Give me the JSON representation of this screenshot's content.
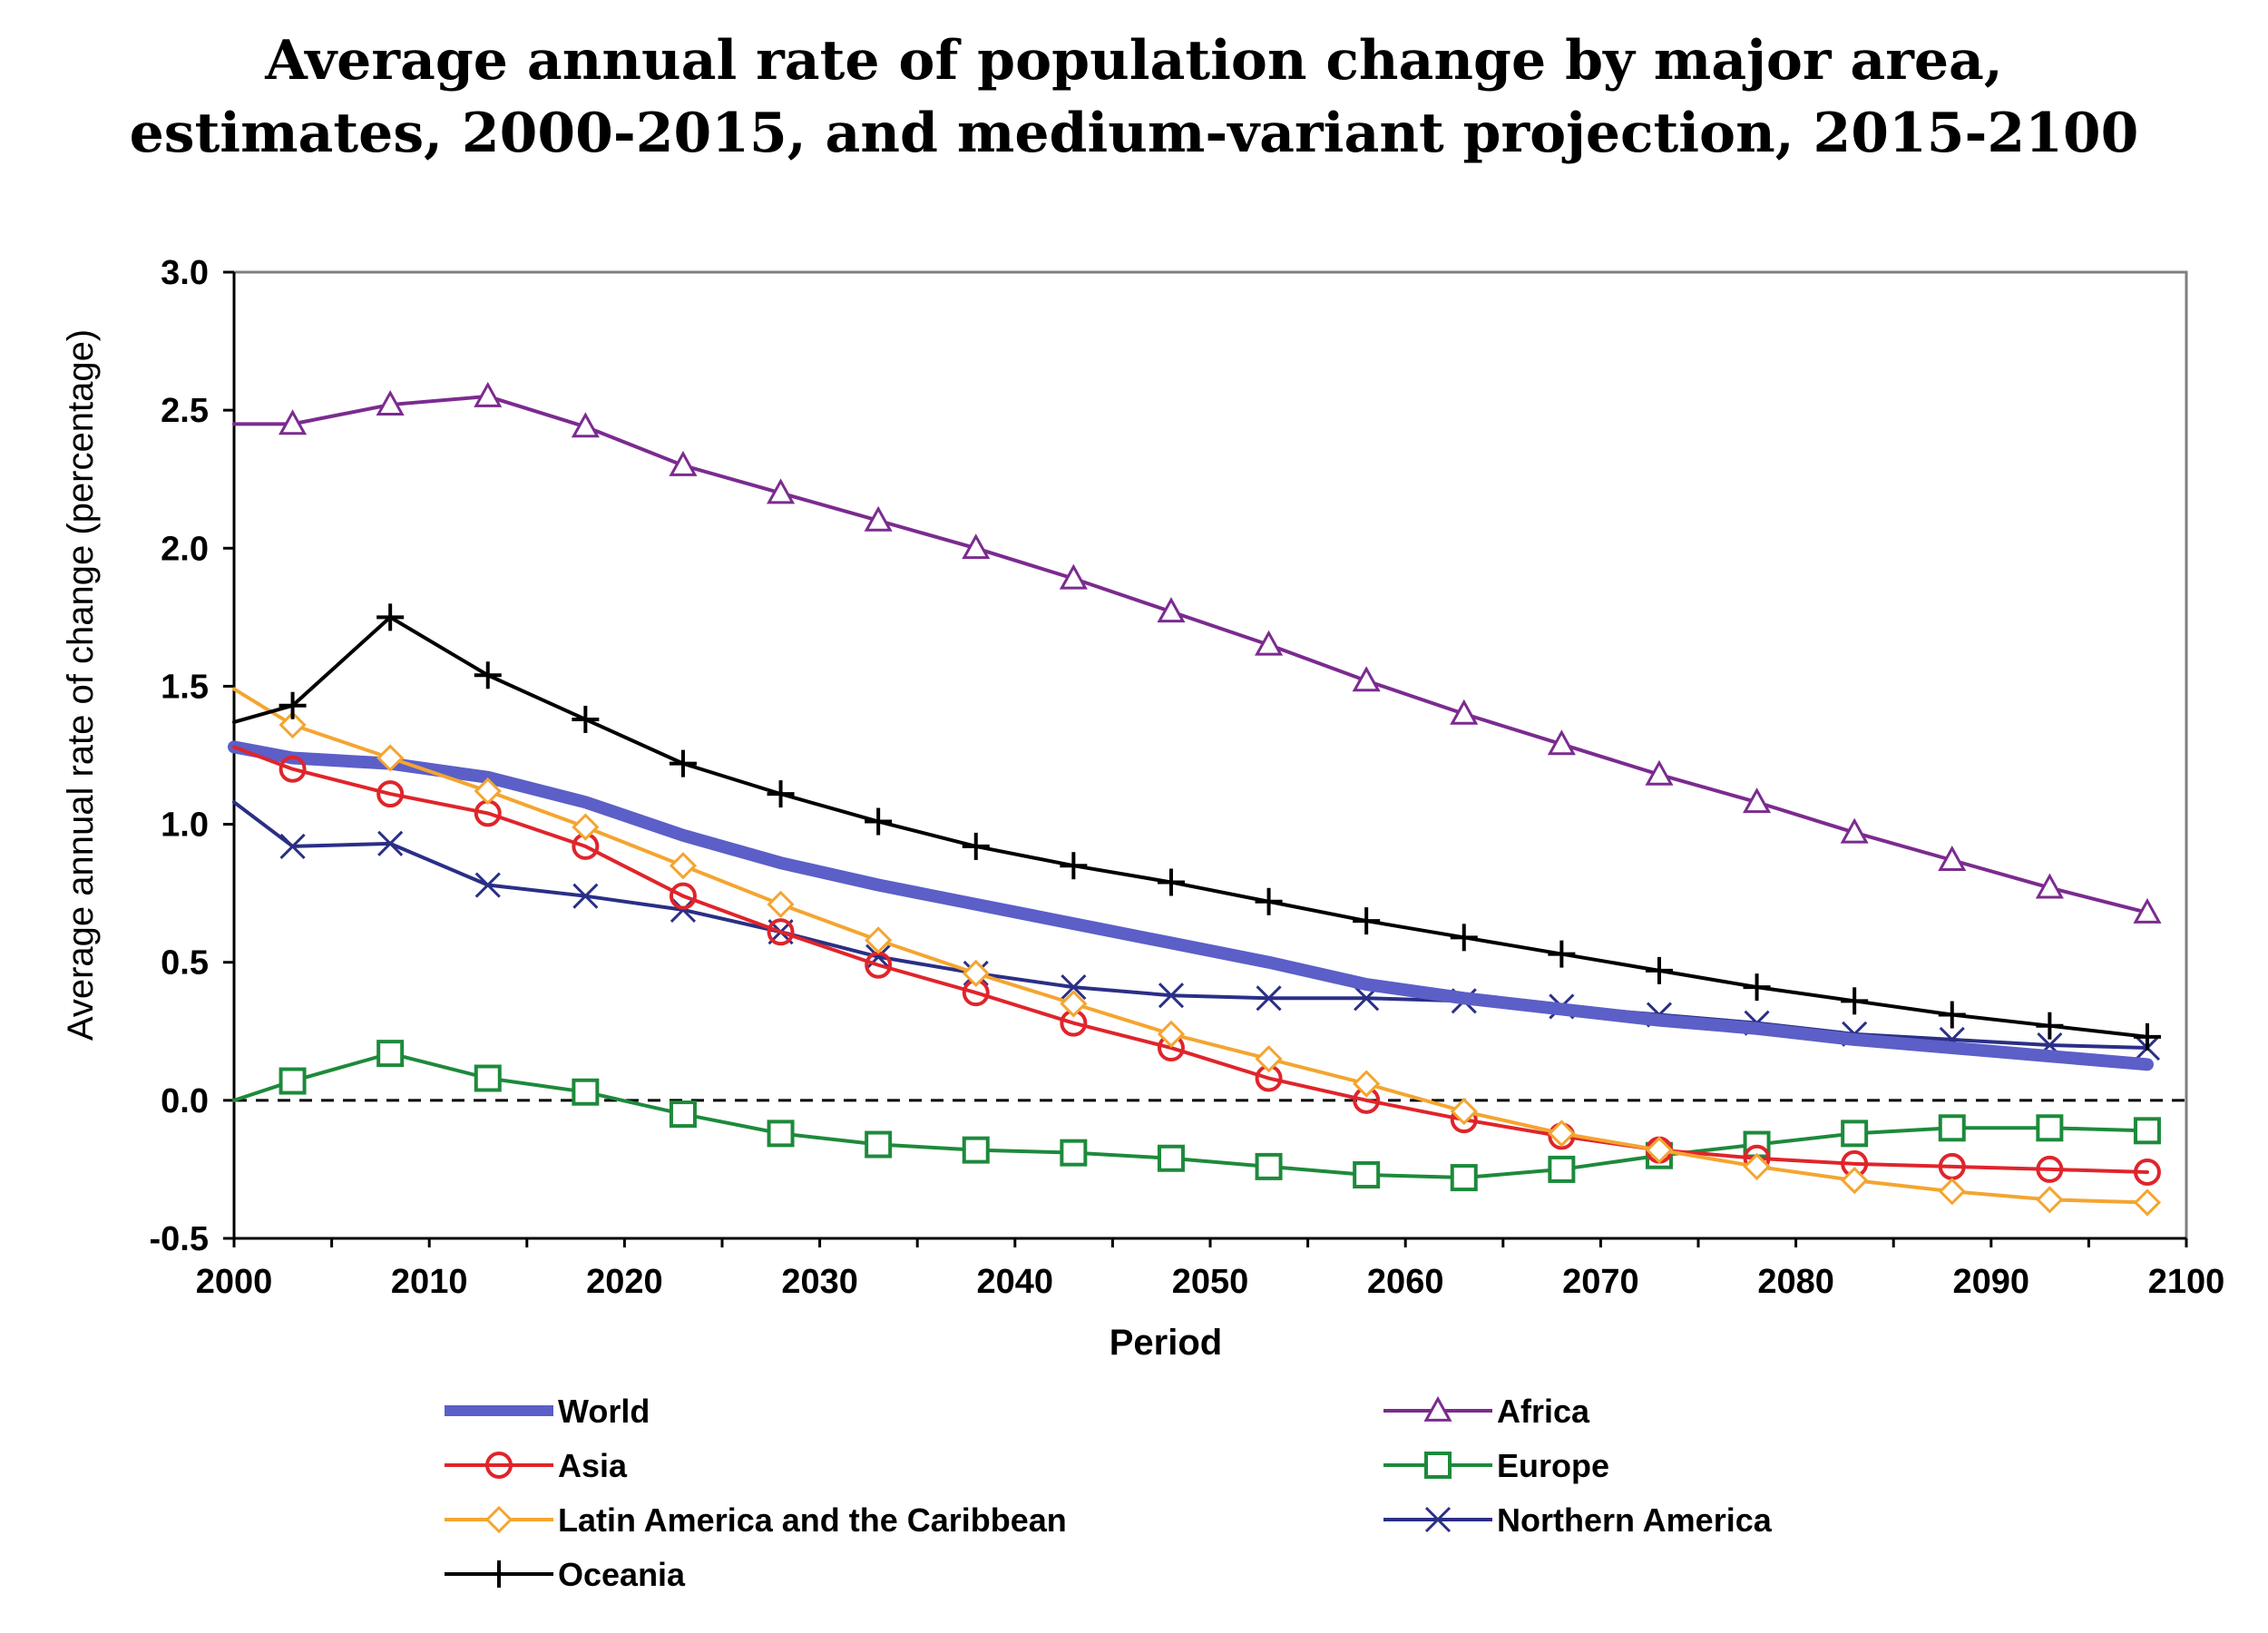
{
  "chart_data": {
    "type": "line",
    "title": "Average annual rate of population change by major area,",
    "subtitle": "estimates, 2000-2015, and medium-variant projection, 2015-2100",
    "xlabel": "Period",
    "ylabel": "Average annual rate of change (percentage)",
    "xlim": [
      2000,
      2100
    ],
    "ylim": [
      -0.5,
      3.0
    ],
    "xticks": [
      2000,
      2010,
      2020,
      2030,
      2040,
      2050,
      2060,
      2070,
      2080,
      2090,
      2100
    ],
    "yticks": [
      -0.5,
      0.0,
      0.5,
      1.0,
      1.5,
      2.0,
      2.5,
      3.0
    ],
    "ytick_labels": [
      "-0.5",
      "0.0",
      "0.5",
      "1.0",
      "1.5",
      "2.0",
      "2.5",
      "3.0"
    ],
    "grid": false,
    "reference_line": {
      "y": 0.0,
      "style": "dashed"
    },
    "legend_position": "bottom",
    "series": [
      {
        "name": "World",
        "color": "#5b5fc7",
        "marker": "none",
        "line_style": "thick",
        "x": [
          2000,
          2003,
          2008,
          2013,
          2018,
          2023,
          2028,
          2033,
          2038,
          2043,
          2048,
          2053,
          2058,
          2063,
          2068,
          2073,
          2078,
          2083,
          2088,
          2093,
          2098
        ],
        "values": [
          1.28,
          1.24,
          1.22,
          1.17,
          1.08,
          0.96,
          0.86,
          0.78,
          0.71,
          0.64,
          0.57,
          0.5,
          0.42,
          0.37,
          0.33,
          0.29,
          0.26,
          0.22,
          0.19,
          0.16,
          0.13
        ]
      },
      {
        "name": "Africa",
        "color": "#7b2b8f",
        "marker": "triangle",
        "x": [
          2000,
          2003,
          2008,
          2013,
          2018,
          2023,
          2028,
          2033,
          2038,
          2043,
          2048,
          2053,
          2058,
          2063,
          2068,
          2073,
          2078,
          2083,
          2088,
          2093,
          2098
        ],
        "values": [
          2.45,
          2.45,
          2.52,
          2.55,
          2.44,
          2.3,
          2.2,
          2.1,
          2.0,
          1.89,
          1.77,
          1.65,
          1.52,
          1.4,
          1.29,
          1.18,
          1.08,
          0.97,
          0.87,
          0.77,
          0.68
        ]
      },
      {
        "name": "Asia",
        "color": "#e0242b",
        "marker": "circle",
        "x": [
          2000,
          2003,
          2008,
          2013,
          2018,
          2023,
          2028,
          2033,
          2038,
          2043,
          2048,
          2053,
          2058,
          2063,
          2068,
          2073,
          2078,
          2083,
          2088,
          2093,
          2098
        ],
        "values": [
          1.28,
          1.2,
          1.11,
          1.04,
          0.92,
          0.74,
          0.61,
          0.49,
          0.39,
          0.28,
          0.19,
          0.08,
          0.0,
          -0.07,
          -0.13,
          -0.18,
          -0.21,
          -0.23,
          -0.24,
          -0.25,
          -0.26
        ]
      },
      {
        "name": "Europe",
        "color": "#1d8a3b",
        "marker": "square",
        "x": [
          2000,
          2003,
          2008,
          2013,
          2018,
          2023,
          2028,
          2033,
          2038,
          2043,
          2048,
          2053,
          2058,
          2063,
          2068,
          2073,
          2078,
          2083,
          2088,
          2093,
          2098
        ],
        "values": [
          0.0,
          0.07,
          0.17,
          0.08,
          0.03,
          -0.05,
          -0.12,
          -0.16,
          -0.18,
          -0.19,
          -0.21,
          -0.24,
          -0.27,
          -0.28,
          -0.25,
          -0.2,
          -0.16,
          -0.12,
          -0.1,
          -0.1,
          -0.11
        ]
      },
      {
        "name": "Latin America and the Caribbean",
        "color": "#f4a530",
        "marker": "diamond",
        "x": [
          2000,
          2003,
          2008,
          2013,
          2018,
          2023,
          2028,
          2033,
          2038,
          2043,
          2048,
          2053,
          2058,
          2063,
          2068,
          2073,
          2078,
          2083,
          2088,
          2093,
          2098
        ],
        "values": [
          1.49,
          1.36,
          1.24,
          1.12,
          0.99,
          0.85,
          0.71,
          0.58,
          0.46,
          0.35,
          0.24,
          0.15,
          0.06,
          -0.04,
          -0.12,
          -0.18,
          -0.24,
          -0.29,
          -0.33,
          -0.36,
          -0.37
        ]
      },
      {
        "name": "Northern America",
        "color": "#2a2f86",
        "marker": "x",
        "x": [
          2000,
          2003,
          2008,
          2013,
          2018,
          2023,
          2028,
          2033,
          2038,
          2043,
          2048,
          2053,
          2058,
          2063,
          2068,
          2073,
          2078,
          2083,
          2088,
          2093,
          2098
        ],
        "values": [
          1.08,
          0.92,
          0.93,
          0.78,
          0.74,
          0.69,
          0.61,
          0.52,
          0.46,
          0.41,
          0.38,
          0.37,
          0.37,
          0.36,
          0.34,
          0.31,
          0.28,
          0.24,
          0.22,
          0.2,
          0.19
        ]
      },
      {
        "name": "Oceania",
        "color": "#000000",
        "marker": "plus",
        "x": [
          2000,
          2003,
          2008,
          2013,
          2018,
          2023,
          2028,
          2033,
          2038,
          2043,
          2048,
          2053,
          2058,
          2063,
          2068,
          2073,
          2078,
          2083,
          2088,
          2093,
          2098
        ],
        "values": [
          1.37,
          1.43,
          1.75,
          1.54,
          1.38,
          1.22,
          1.11,
          1.01,
          0.92,
          0.85,
          0.79,
          0.72,
          0.65,
          0.59,
          0.53,
          0.47,
          0.41,
          0.36,
          0.31,
          0.27,
          0.23
        ]
      }
    ]
  }
}
